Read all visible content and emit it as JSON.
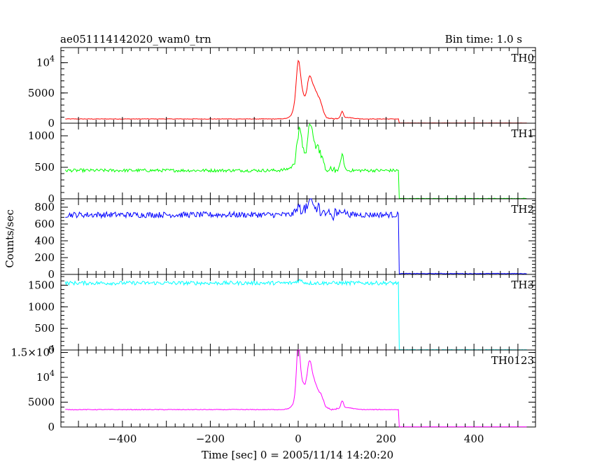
{
  "header": {
    "title": "ae051114142020_wam0_trn",
    "bin_time": "Bin time: 1.0 s"
  },
  "chart_data": {
    "type": "line",
    "ylabel": "Counts/sec",
    "xlabel": "Time [sec] 0 = 2005/11/14 14:20:20",
    "xlim": [
      -540,
      540
    ],
    "x_ticks": [
      -400,
      -200,
      0,
      200,
      400
    ],
    "x_tick_labels": [
      "−400",
      "−200",
      "0",
      "200",
      "400"
    ],
    "x_step": 2,
    "grid": false,
    "panels": [
      {
        "name": "TH0",
        "color": "#ff0000",
        "ylim": [
          0,
          12500
        ],
        "y_ticks": [
          0,
          5000,
          10000
        ],
        "y_tick_labels": [
          "0",
          "5000",
          "10^4"
        ],
        "x_start": -530,
        "x_end": 520,
        "x_drop": 230,
        "baseline": 700,
        "noise": 40,
        "post_level": 40,
        "peaks": [
          [
            0,
            4800,
            6
          ],
          [
            3,
            4000,
            12
          ],
          [
            25,
            4200,
            7
          ],
          [
            35,
            3200,
            9
          ],
          [
            48,
            2400,
            10
          ],
          [
            20,
            1800,
            28
          ],
          [
            100,
            1100,
            4
          ],
          [
            110,
            250,
            20
          ]
        ]
      },
      {
        "name": "TH1",
        "color": "#00ff00",
        "ylim": [
          0,
          1200
        ],
        "y_ticks": [
          0,
          500,
          1000
        ],
        "y_tick_labels": [
          "0",
          "500",
          "1000"
        ],
        "x_start": -530,
        "x_end": 520,
        "x_drop": 230,
        "baseline": 450,
        "noise": 25,
        "post_level": 5,
        "peaks": [
          [
            3,
            500,
            8
          ],
          [
            28,
            600,
            8
          ],
          [
            45,
            300,
            10
          ],
          [
            18,
            180,
            30
          ],
          [
            100,
            250,
            5
          ]
        ]
      },
      {
        "name": "TH2",
        "color": "#0000ff",
        "ylim": [
          0,
          900
        ],
        "y_ticks": [
          0,
          200,
          400,
          600,
          800
        ],
        "y_tick_labels": [
          "0",
          "200",
          "400",
          "600",
          "800"
        ],
        "x_start": -530,
        "x_end": 520,
        "x_drop": 230,
        "baseline": 710,
        "noise": 35,
        "post_level": 10,
        "peaks": [
          [
            3,
            100,
            10
          ],
          [
            28,
            150,
            10
          ],
          [
            50,
            70,
            12
          ],
          [
            100,
            50,
            10
          ]
        ]
      },
      {
        "name": "TH3",
        "color": "#00ffff",
        "ylim": [
          0,
          1750
        ],
        "y_ticks": [
          0,
          500,
          1000,
          1500
        ],
        "y_tick_labels": [
          "0",
          "500",
          "1000",
          "1500"
        ],
        "x_start": -530,
        "x_end": 520,
        "x_drop": 230,
        "baseline": 1550,
        "noise": 45,
        "post_level": 5,
        "peaks": [
          [
            3,
            60,
            10
          ]
        ]
      },
      {
        "name": "TH0123",
        "color": "#ff00ff",
        "ylim": [
          0,
          15500
        ],
        "y_ticks": [
          0,
          5000,
          10000,
          15000
        ],
        "y_tick_labels": [
          "0",
          "5000",
          "10^4",
          "1.5×10^4"
        ],
        "x_start": -530,
        "x_end": 520,
        "x_drop": 230,
        "baseline": 3500,
        "noise": 70,
        "post_level": 30,
        "peaks": [
          [
            0,
            9000,
            5
          ],
          [
            5,
            4500,
            12
          ],
          [
            25,
            6500,
            7
          ],
          [
            35,
            4000,
            9
          ],
          [
            50,
            2500,
            10
          ],
          [
            20,
            2000,
            28
          ],
          [
            100,
            1500,
            4
          ],
          [
            110,
            400,
            20
          ]
        ]
      }
    ]
  }
}
